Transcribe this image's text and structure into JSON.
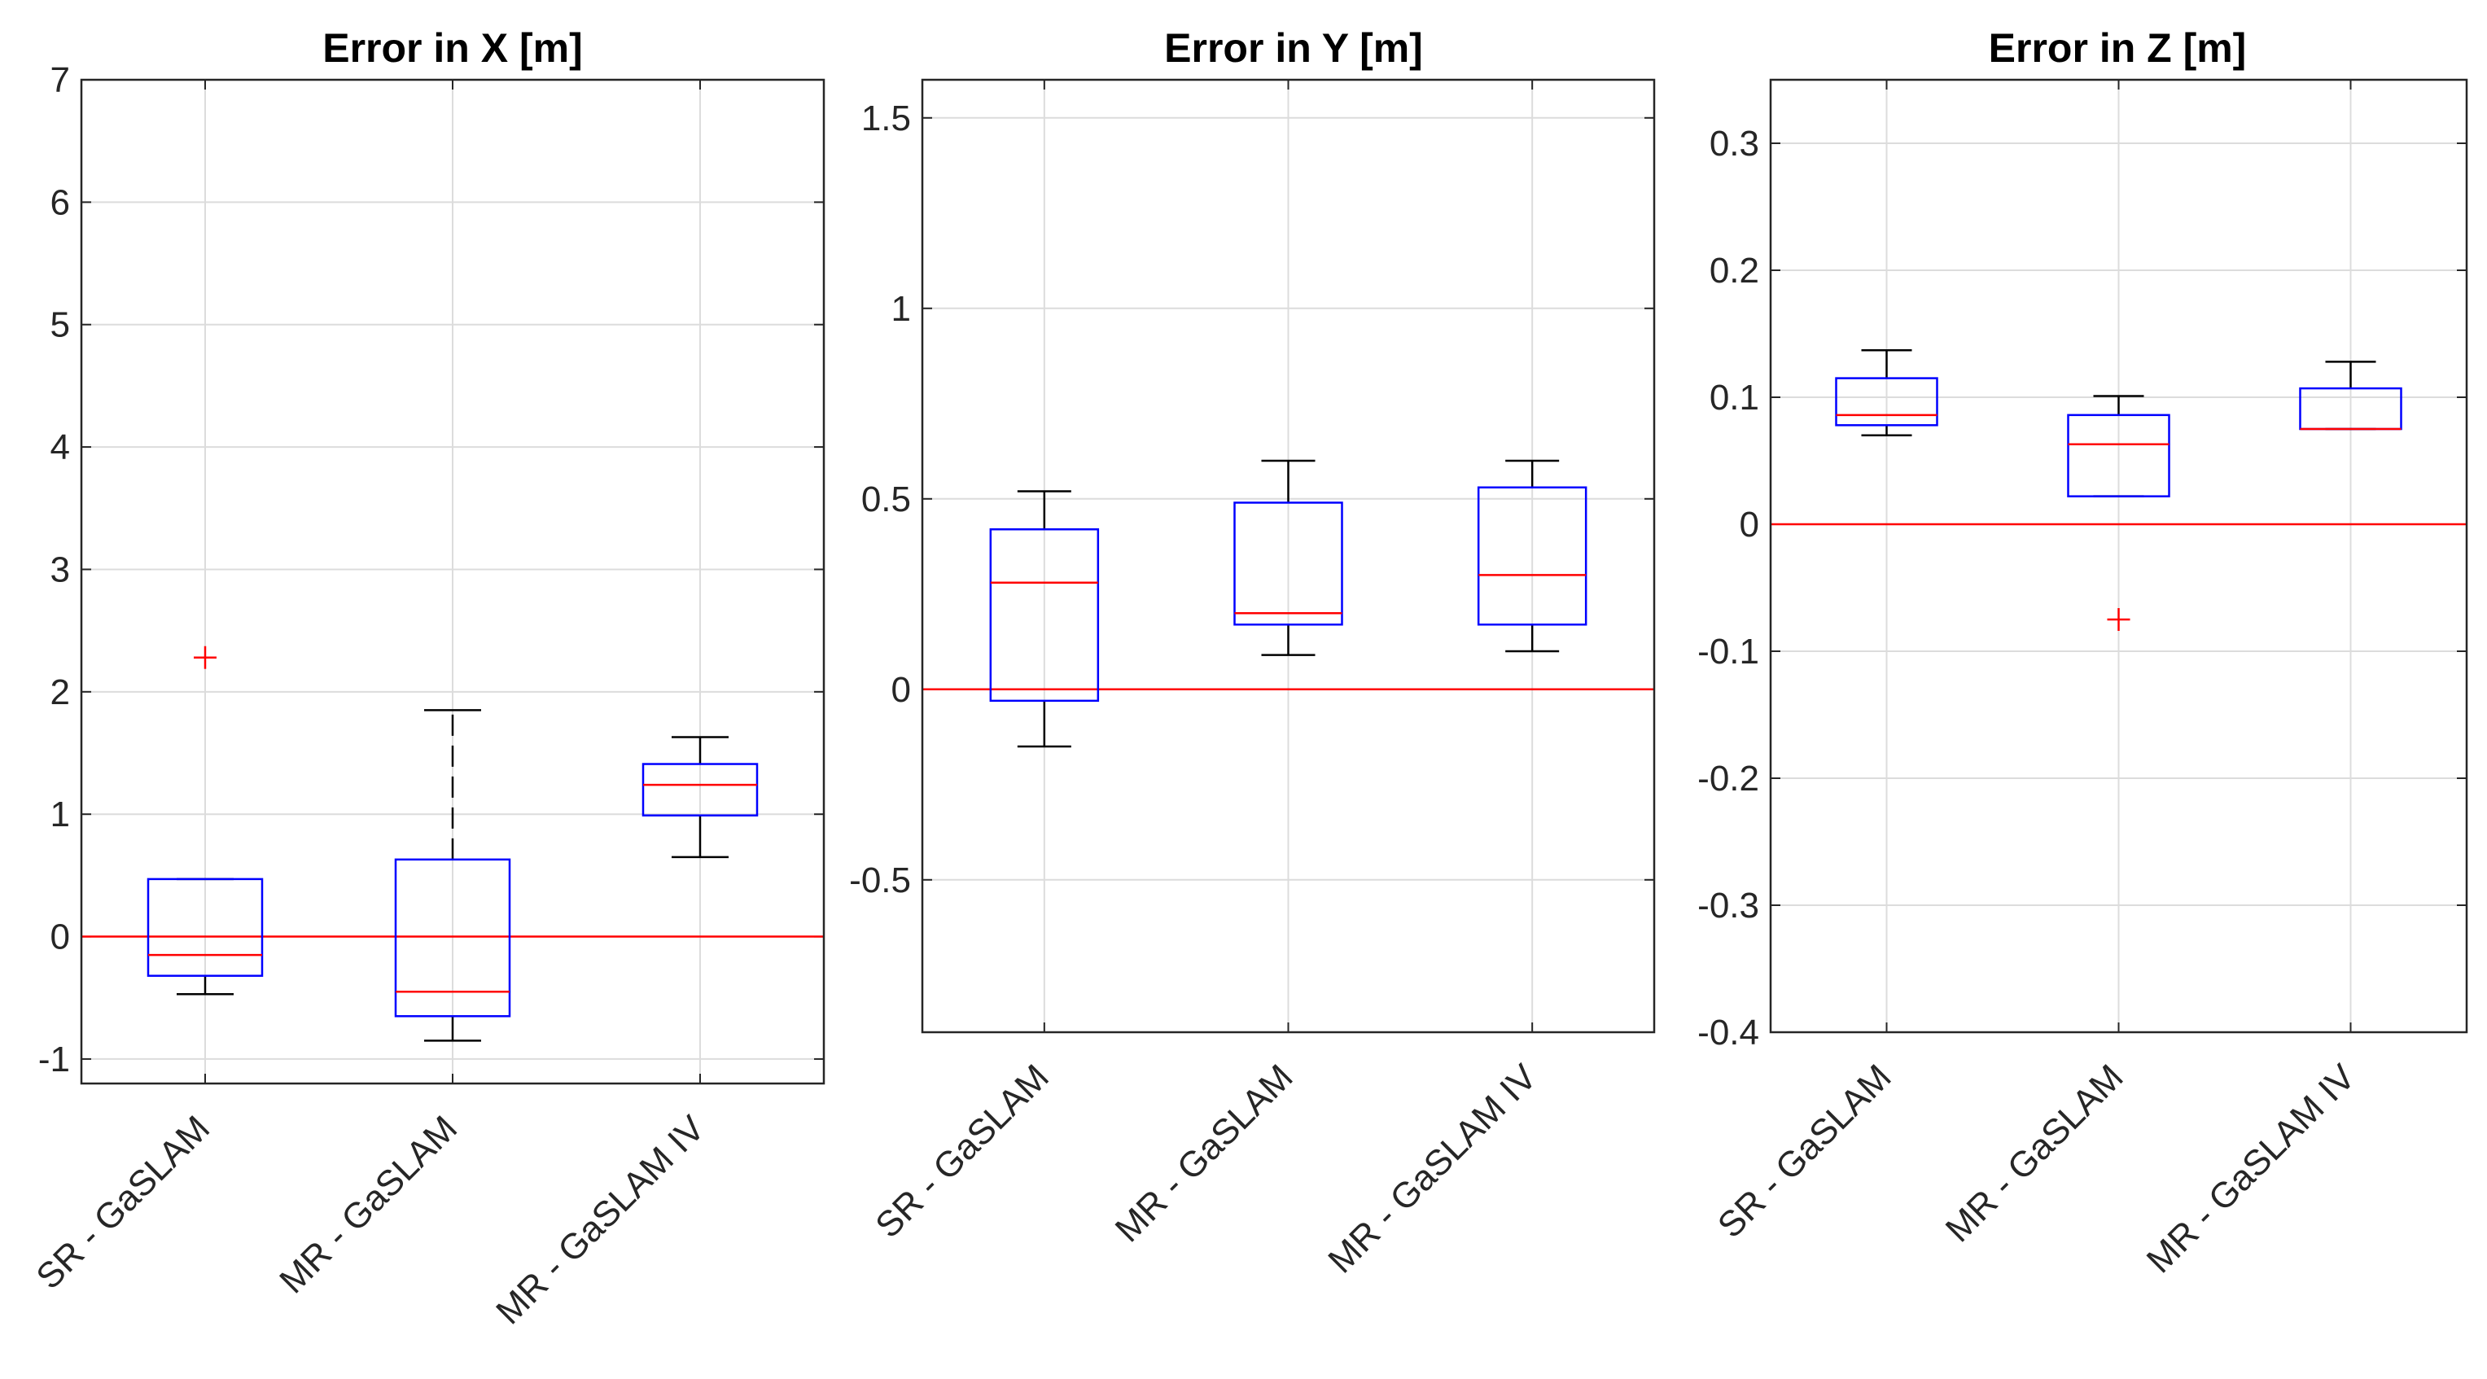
{
  "chart_data": [
    {
      "type": "boxplot",
      "title": "Error in X [m]",
      "xlabel": "",
      "ylabel": "",
      "ylim": [
        -1.2,
        7
      ],
      "yticks": [
        -1,
        0,
        1,
        2,
        3,
        4,
        5,
        6,
        7
      ],
      "grid": true,
      "reference_line": 0,
      "categories": [
        "SR - GaSLAM",
        "MR - GaSLAM",
        "MR - GaSLAM IV"
      ],
      "boxes": [
        {
          "whisker_low": -0.47,
          "q1": -0.32,
          "median": -0.15,
          "q3": 0.47,
          "whisker_high": 0.47,
          "outliers": [
            2.28
          ]
        },
        {
          "whisker_low": -0.85,
          "q1": -0.65,
          "median": -0.45,
          "q3": 0.63,
          "whisker_high": 1.85,
          "outliers": []
        },
        {
          "whisker_low": 0.65,
          "q1": 0.99,
          "median": 1.24,
          "q3": 1.41,
          "whisker_high": 1.63,
          "outliers": []
        }
      ]
    },
    {
      "type": "boxplot",
      "title": "Error in Y [m]",
      "xlabel": "",
      "ylabel": "",
      "ylim": [
        -0.9,
        1.6
      ],
      "yticks": [
        -0.5,
        0,
        0.5,
        1,
        1.5
      ],
      "ytick_labels": [
        "-0.5",
        "0",
        "0.5",
        "1",
        "1.5"
      ],
      "grid": true,
      "reference_line": 0,
      "categories": [
        "SR - GaSLAM",
        "MR - GaSLAM",
        "MR - GaSLAM IV"
      ],
      "boxes": [
        {
          "whisker_low": -0.15,
          "q1": -0.03,
          "median": 0.28,
          "q3": 0.42,
          "whisker_high": 0.52,
          "outliers": []
        },
        {
          "whisker_low": 0.09,
          "q1": 0.17,
          "median": 0.2,
          "q3": 0.49,
          "whisker_high": 0.6,
          "outliers": []
        },
        {
          "whisker_low": 0.1,
          "q1": 0.17,
          "median": 0.3,
          "q3": 0.53,
          "whisker_high": 0.6,
          "outliers": []
        }
      ]
    },
    {
      "type": "boxplot",
      "title": "Error in Z [m]",
      "xlabel": "",
      "ylabel": "",
      "ylim": [
        -0.4,
        0.35
      ],
      "yticks": [
        -0.4,
        -0.3,
        -0.2,
        -0.1,
        0,
        0.1,
        0.2,
        0.3
      ],
      "ytick_labels": [
        "-0.4",
        "-0.3",
        "-0.2",
        "-0.1",
        "0",
        "0.1",
        "0.2",
        "0.3"
      ],
      "grid": true,
      "reference_line": 0,
      "categories": [
        "SR - GaSLAM",
        "MR - GaSLAM",
        "MR - GaSLAM IV"
      ],
      "boxes": [
        {
          "whisker_low": 0.07,
          "q1": 0.078,
          "median": 0.086,
          "q3": 0.115,
          "whisker_high": 0.137,
          "outliers": []
        },
        {
          "whisker_low": 0.022,
          "q1": 0.022,
          "median": 0.063,
          "q3": 0.086,
          "whisker_high": 0.101,
          "outliers": [
            -0.075
          ]
        },
        {
          "whisker_low": 0.075,
          "q1": 0.075,
          "median": 0.075,
          "q3": 0.107,
          "whisker_high": 0.128,
          "outliers": []
        }
      ]
    }
  ],
  "colors": {
    "box": "#0000ff",
    "median": "#ff0000",
    "whisker": "#000000",
    "outlier": "#ff0000",
    "reference_line": "#ff0000",
    "grid": "#dcdcdc",
    "axes": "#262626"
  }
}
